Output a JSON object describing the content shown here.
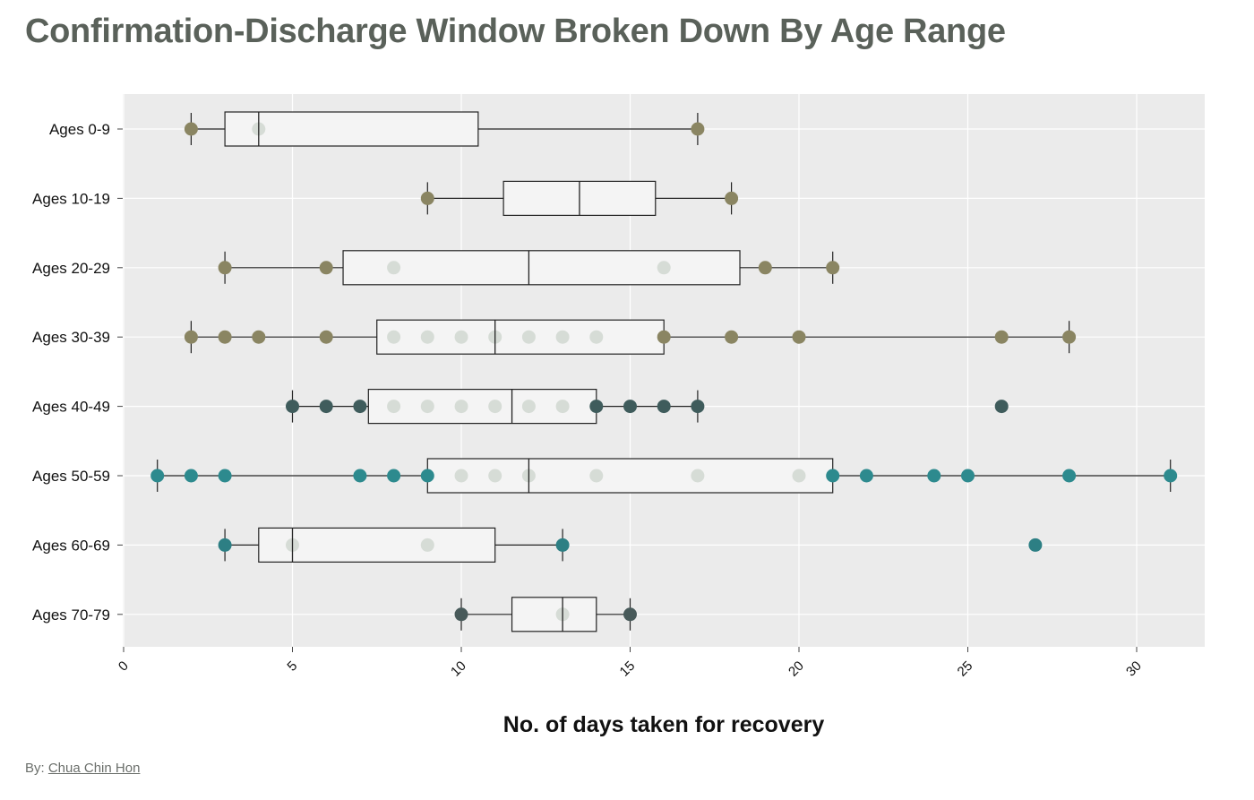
{
  "title": "Confirmation-Discharge Window Broken Down By Age Range",
  "byline": {
    "prefix": "By: ",
    "author": "Chua Chin Hon"
  },
  "colors": {
    "panel": "#ebebeb",
    "grid": "#ffffff",
    "box_fill": "#f4f4f4",
    "inner_point": "#d3d9d3"
  },
  "chart_data": {
    "type": "box",
    "orientation": "horizontal",
    "title": "Confirmation-Discharge Window Broken Down By Age Range",
    "xlabel": "No. of days taken for recovery",
    "ylabel": "",
    "xlim": [
      0,
      32
    ],
    "xticks": [
      0,
      5,
      10,
      15,
      20,
      25,
      30
    ],
    "grid": true,
    "legend": "none",
    "categories": [
      "Ages 0-9",
      "Ages 10-19",
      "Ages 20-29",
      "Ages 30-39",
      "Ages 40-49",
      "Ages 50-59",
      "Ages 60-69",
      "Ages 70-79"
    ],
    "series": [
      {
        "category": "Ages 0-9",
        "q1": 3,
        "median": 4,
        "q3": 10.5,
        "whisker_low": 2,
        "whisker_high": 17,
        "point_color": "#8a8562",
        "points": [
          2,
          4,
          17
        ]
      },
      {
        "category": "Ages 10-19",
        "q1": 11.25,
        "median": 13.5,
        "q3": 15.75,
        "whisker_low": 9,
        "whisker_high": 18,
        "point_color": "#8a8562",
        "points": [
          9,
          18
        ]
      },
      {
        "category": "Ages 20-29",
        "q1": 6.5,
        "median": 12,
        "q3": 18.25,
        "whisker_low": 3,
        "whisker_high": 21,
        "point_color": "#8a8562",
        "points": [
          3,
          6,
          8,
          16,
          19,
          21
        ]
      },
      {
        "category": "Ages 30-39",
        "q1": 7.5,
        "median": 11,
        "q3": 16,
        "whisker_low": 2,
        "whisker_high": 28,
        "point_color": "#8a8562",
        "points": [
          2,
          3,
          4,
          6,
          8,
          9,
          10,
          11,
          12,
          13,
          14,
          16,
          18,
          20,
          26,
          28
        ]
      },
      {
        "category": "Ages 40-49",
        "q1": 7.25,
        "median": 11.5,
        "q3": 14,
        "whisker_low": 5,
        "whisker_high": 17,
        "point_color": "#3f5c5c",
        "points": [
          5,
          6,
          7,
          8,
          9,
          10,
          11,
          12,
          13,
          14,
          15,
          16,
          17,
          26
        ]
      },
      {
        "category": "Ages 50-59",
        "q1": 9,
        "median": 12,
        "q3": 21,
        "whisker_low": 1,
        "whisker_high": 31,
        "point_color": "#2d8a8e",
        "points": [
          1,
          2,
          3,
          7,
          8,
          9,
          10,
          11,
          12,
          14,
          17,
          20,
          21,
          22,
          24,
          25,
          28,
          31
        ]
      },
      {
        "category": "Ages 60-69",
        "q1": 4,
        "median": 5,
        "q3": 11,
        "whisker_low": 3,
        "whisker_high": 13,
        "point_color": "#2d7f84",
        "points": [
          3,
          5,
          9,
          13,
          27
        ]
      },
      {
        "category": "Ages 70-79",
        "q1": 11.5,
        "median": 13,
        "q3": 14,
        "whisker_low": 10,
        "whisker_high": 15,
        "point_color": "#485a5a",
        "points": [
          10,
          13,
          15
        ]
      }
    ]
  }
}
